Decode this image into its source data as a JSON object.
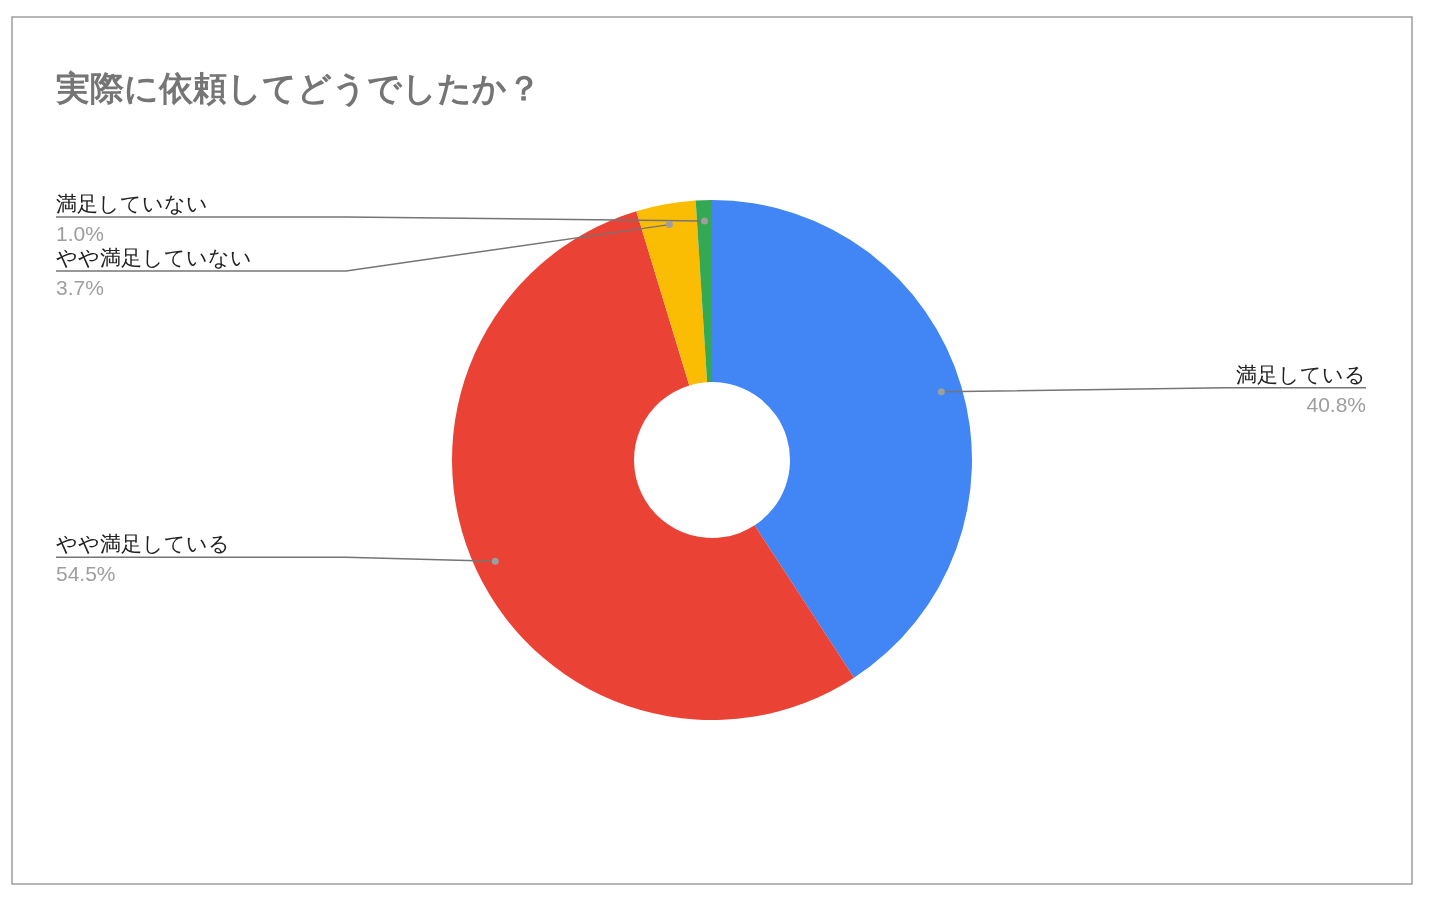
{
  "chart_data": {
    "type": "donut",
    "title": "実際に依頼してどうでしたか？",
    "categories": [
      "満足している",
      "やや満足している",
      "やや満足していない",
      "満足していない"
    ],
    "values": [
      40.8,
      54.5,
      3.7,
      1.0
    ],
    "colors": [
      "#4285f4",
      "#ea4335",
      "#fbbc04",
      "#34a853"
    ],
    "value_labels": [
      "40.8%",
      "54.5%",
      "3.7%",
      "1.0%"
    ]
  }
}
